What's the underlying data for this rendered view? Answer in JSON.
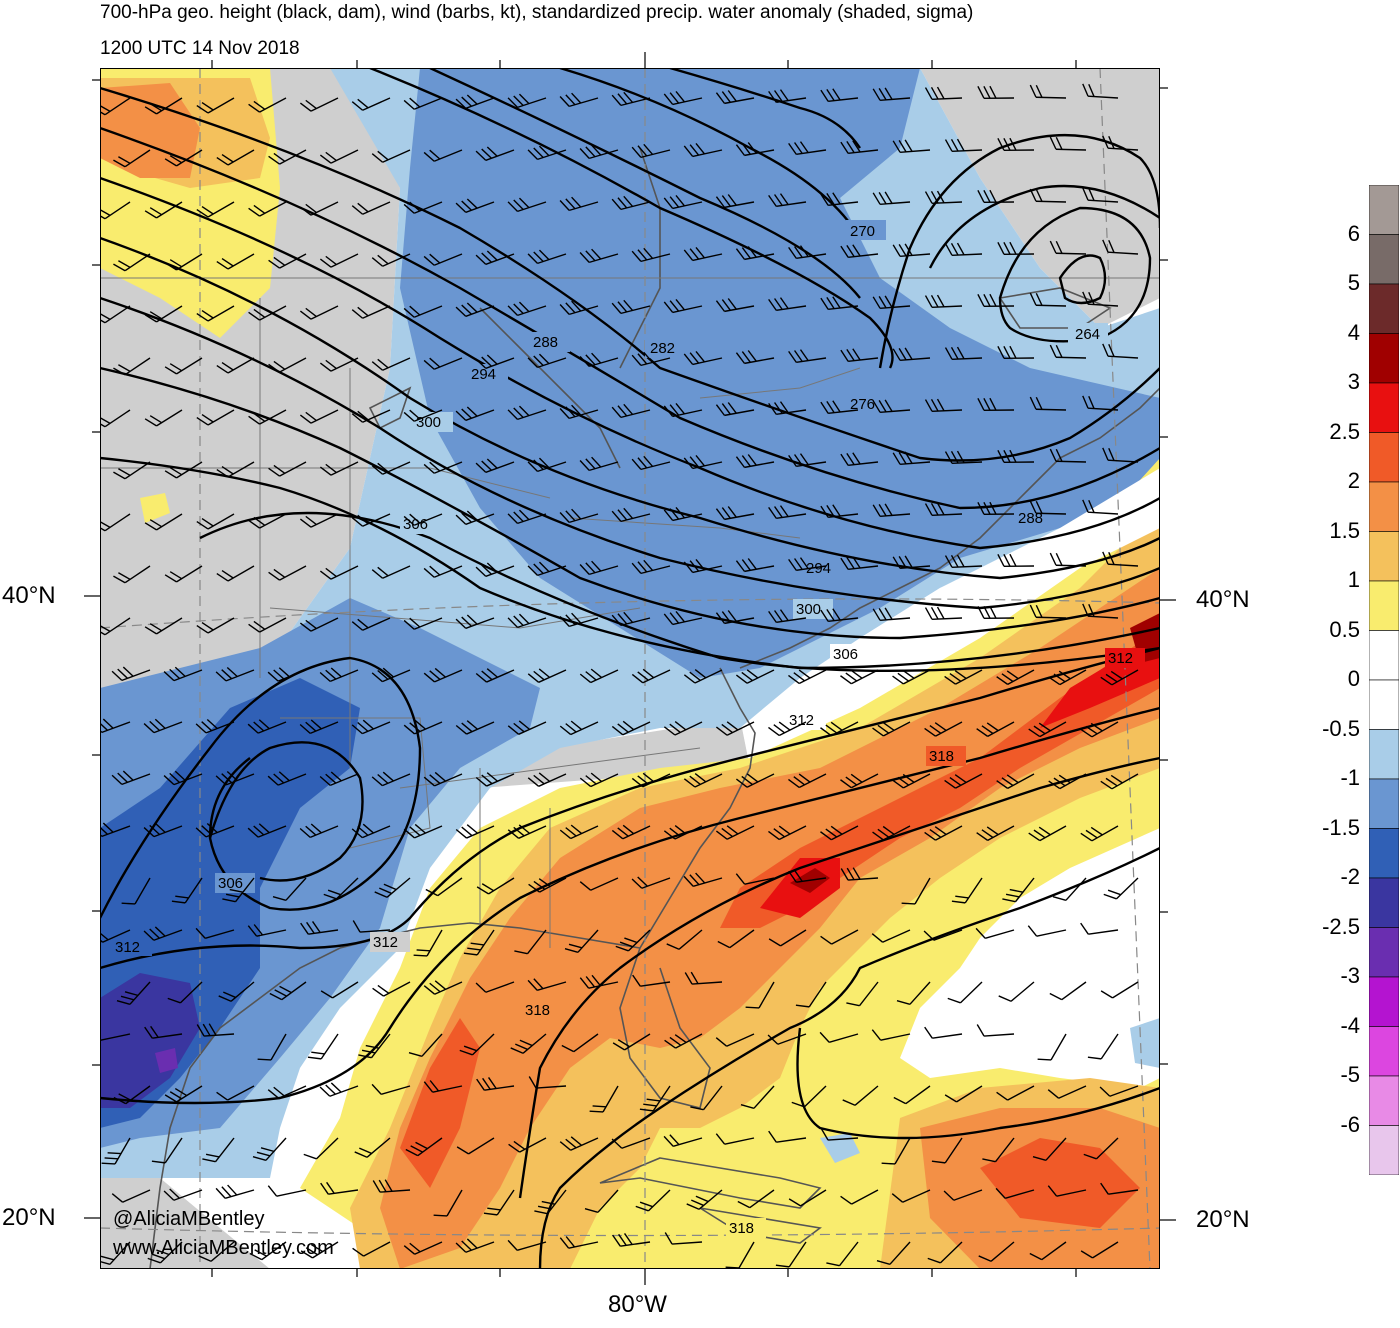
{
  "header": {
    "title": "700-hPa geo. height (black, dam), wind (barbs, kt), standardized precip. water anomaly (shaded, sigma)",
    "valid_time": "1200 UTC 14 Nov 2018"
  },
  "axes": {
    "lat_labels": [
      "40°N",
      "20°N"
    ],
    "lon_label": "80°W"
  },
  "credits": {
    "handle": "@AliciaMBentley",
    "website": "www.AliciaMBentley.com"
  },
  "height_contour_labels": [
    "264",
    "270",
    "276",
    "282",
    "288",
    "288",
    "294",
    "294",
    "300",
    "300",
    "306",
    "306",
    "306",
    "312",
    "312",
    "312",
    "312",
    "318",
    "318",
    "318"
  ],
  "colorbar": {
    "labels": [
      "6",
      "5",
      "4",
      "3",
      "2.5",
      "2",
      "1.5",
      "1",
      "0.5",
      "0",
      "-0.5",
      "-1",
      "-1.5",
      "-2",
      "-2.5",
      "-3",
      "-4",
      "-5",
      "-6"
    ],
    "colors_top_to_bottom": [
      "#a39995",
      "#786b68",
      "#6c2a2a",
      "#a00000",
      "#e81010",
      "#f05a28",
      "#f39046",
      "#f4c15c",
      "#f9ec6e",
      "#ffffff",
      "#ffffff",
      "#a9cde8",
      "#6a96d1",
      "#3060b6",
      "#3a36a0",
      "#6a2eb0",
      "#b414d0",
      "#dc46e0",
      "#e88ae6",
      "#e8c6ec"
    ]
  },
  "map_colors": {
    "land_gray": "#cfcfcf",
    "water_white": "#ffffff"
  }
}
